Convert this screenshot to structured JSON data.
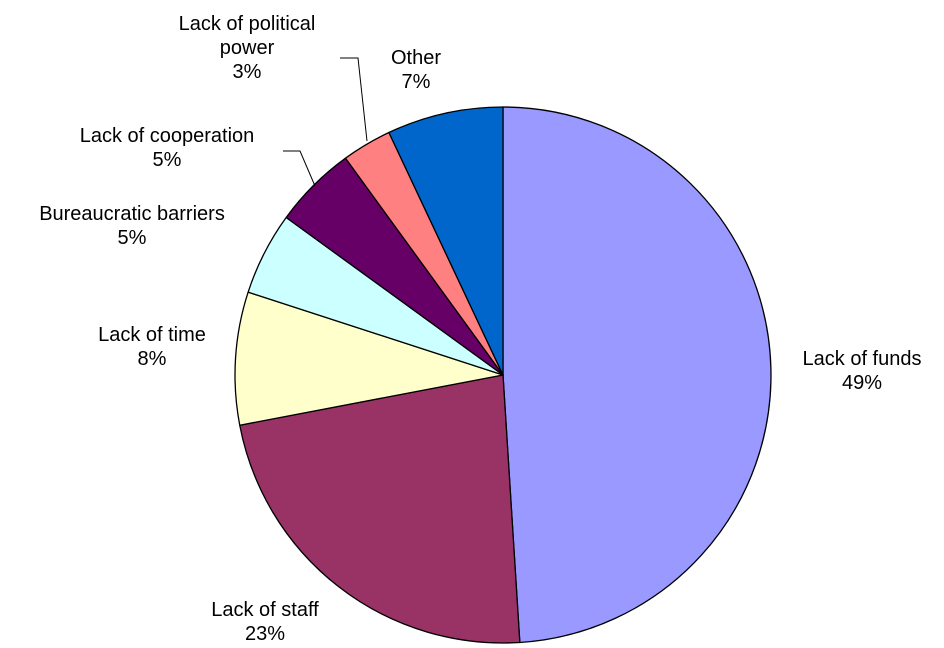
{
  "chart_data": {
    "type": "pie",
    "title": "",
    "start_angle_deg": 0,
    "direction": "clockwise",
    "legend": "none",
    "slices": [
      {
        "label": [
          "Lack of funds"
        ],
        "value": 49,
        "value_label": "49%",
        "color": "#9999FF"
      },
      {
        "label": [
          "Lack of staff"
        ],
        "value": 23,
        "value_label": "23%",
        "color": "#993366"
      },
      {
        "label": [
          "Lack of time"
        ],
        "value": 8,
        "value_label": "8%",
        "color": "#FFFFCC"
      },
      {
        "label": [
          "Bureaucratic barriers"
        ],
        "value": 5,
        "value_label": "5%",
        "color": "#CCFFFF"
      },
      {
        "label": [
          "Lack of cooperation"
        ],
        "value": 5,
        "value_label": "5%",
        "color": "#660066"
      },
      {
        "label": [
          "Lack of political",
          "power"
        ],
        "value": 3,
        "value_label": "3%",
        "color": "#FF8080"
      },
      {
        "label": [
          "Other"
        ],
        "value": 7,
        "value_label": "7%",
        "color": "#0066CC"
      }
    ]
  }
}
